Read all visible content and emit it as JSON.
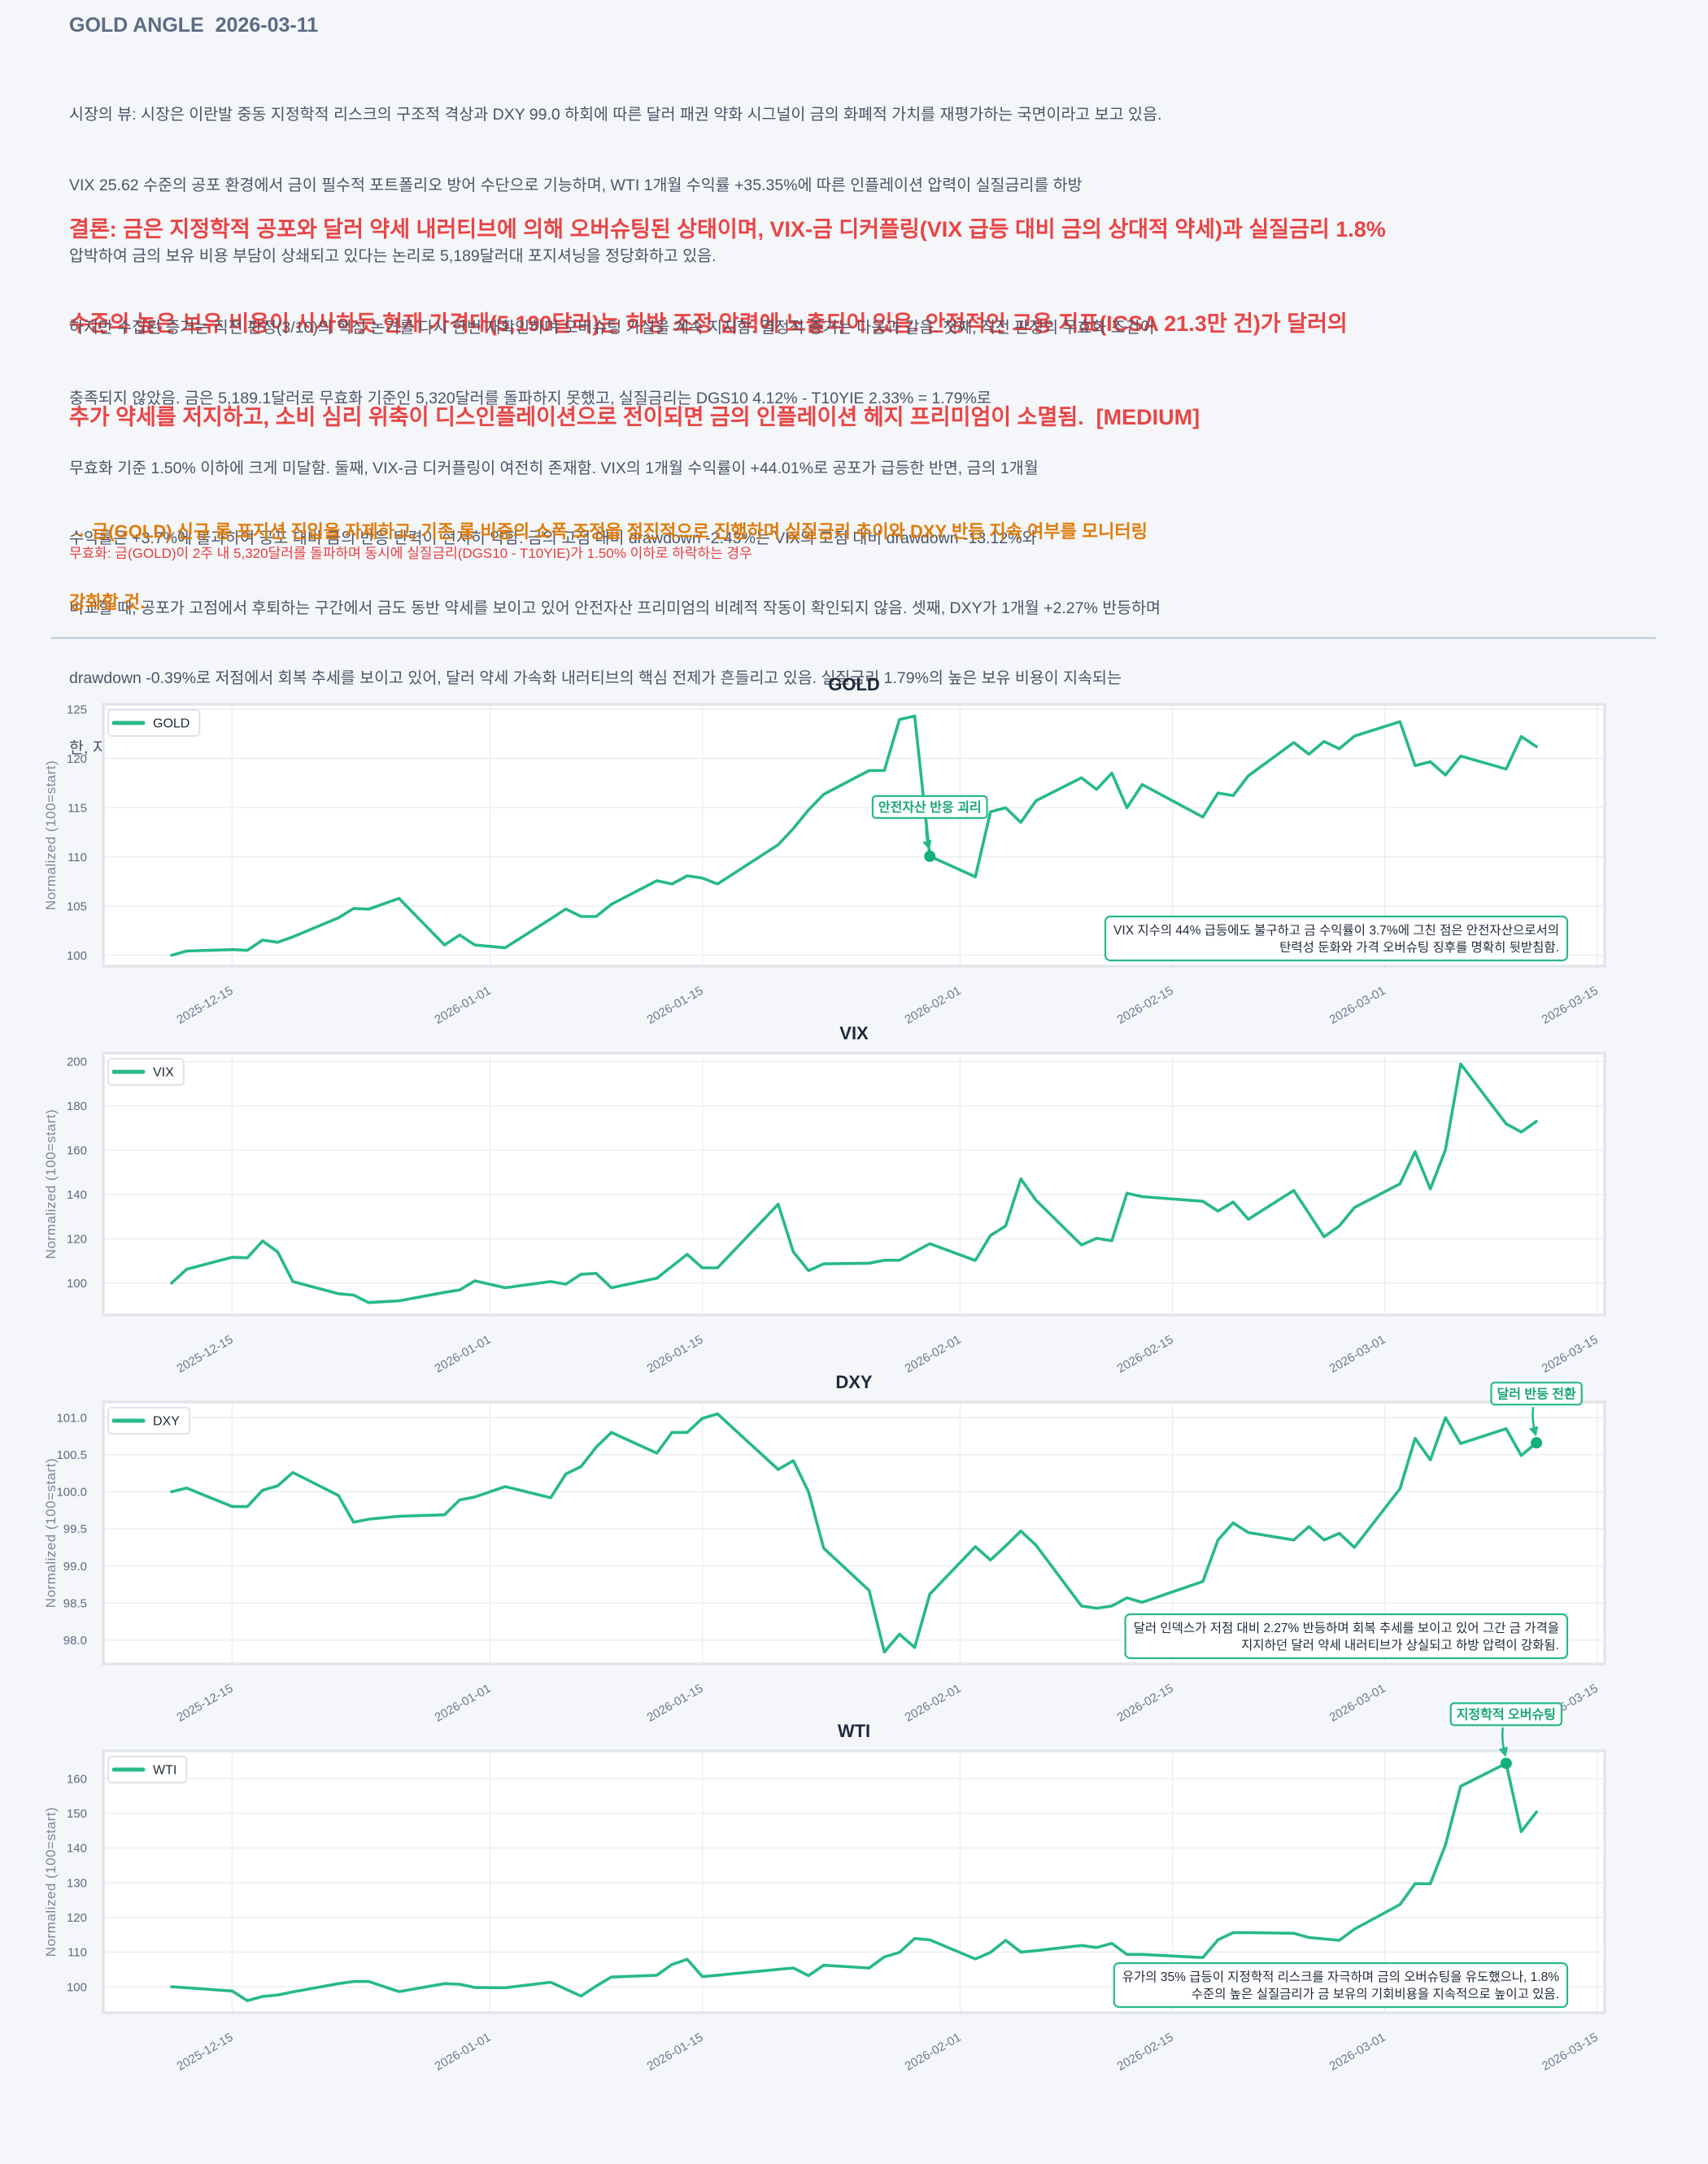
{
  "header": {
    "title": "GOLD ANGLE  2026-03-11"
  },
  "market_view": {
    "lines": [
      "시장의 뷰: 시장은 이란발 중동 지정학적 리스크의 구조적 격상과 DXY 99.0 하회에 따른 달러 패권 약화 시그널이 금의 화폐적 가치를 재평가하는 국면이라고 보고 있음.",
      "VIX 25.62 수준의 공포 환경에서 금이 필수적 포트폴리오 방어 수단으로 기능하며, WTI 1개월 수익률 +35.35%에 따른 인플레이션 압력이 실질금리를 하방",
      "압박하여 금의 보유 비용 부담이 상쇄되고 있다는 논리로 5,189달러대 포지셔닝을 정당화하고 있음."
    ]
  },
  "conclusion": {
    "lines": [
      "결론: 금은 지정학적 공포와 달러 약세 내러티브에 의해 오버슈팅된 상태이며, VIX-금 디커플링(VIX 급등 대비 금의 상대적 약세)과 실질금리 1.8%",
      "수준의 높은 보유 비용이 시사하듯 현재 가격대(5,190달러)는 하방 조정 압력에 노출되어 있음. 안정적인 고용 지표(ICSA 21.3만 건)가 달러의",
      "추가 약세를 저지하고, 소비 심리 위축이 디스인플레이션으로 전이되면 금의 인플레이션 헤지 프리미엄이 소멸됨.  [MEDIUM]"
    ]
  },
  "evidence": {
    "lines": [
      "하지만 수집된 증거는 직전 판정(3/10)의 핵심 논거를 다시 한번 재확인하며 오버슈팅 가설을 계속 지지함. 결정적 증거는 다음과 같음. 첫째, 직전 판정의 무효화 조건이",
      "충족되지 않았음. 금은 5,189.1달러로 무효화 기준인 5,320달러를 돌파하지 못했고, 실질금리는 DGS10 4.12% - T10YIE 2.33% = 1.79%로",
      "무효화 기준 1.50% 이하에 크게 미달함. 둘째, VIX-금 디커플링이 여전히 존재함. VIX의 1개월 수익률이 +44.01%로 공포가 급등한 반면, 금의 1개월",
      "수익률은 +3.7%에 불과하여 공포 대비 금의 반응 탄력이 현저히 약함. 금의 고점 대비 drawdown -2.43%는 VIX의 고점 대비 drawdown -13.12%와",
      "비교할 때, 공포가 고점에서 후퇴하는 구간에서 금도 동반 약세를 보이고 있어 안전자산 프리미엄의 비례적 작동이 확인되지 않음. 셋째, DXY가 1개월 +2.27% 반등하며",
      "drawdown -0.39%로 저점에서 회복 추세를 보이고 있어, 달러 약세 가속화 내러티브의 핵심 전제가 흔들리고 있음. 실질금리 1.79%의 높은 보유 비용이 지속되는",
      "한, 지정학적 프리미엄만으로 현 가격대를 지탱하기 어려운 구조임."
    ]
  },
  "action": {
    "lines": [
      "→ 금(GOLD) 신규 롱 포지션 진입을 자제하고, 기존 롱 비중의 소폭 조정을 점진적으로 진행하며 실질금리 추이와 DXY 반등 지속 여부를 모니터링",
      "강화할 것."
    ]
  },
  "invalidation": {
    "text": "무효화: 금(GOLD)이 2주 내 5,320달러를 돌파하며 동시에 실질금리(DGS10 - T10YIE)가 1.50% 이하로 하락하는 경우"
  },
  "theme": {
    "accent": "#27b98a",
    "marker": "#14b07a",
    "annotation_text": "#17a673"
  },
  "chart_data": [
    {
      "type": "line",
      "title": "GOLD",
      "xlabel": "",
      "ylabel": "Normalized (100=start)",
      "xlim": [
        "2025-12-06T12:00",
        "2026-03-15T12:00"
      ],
      "ylim": [
        98.9,
        125.5
      ],
      "grid": true,
      "legend": "top-left",
      "xticks": [
        "2025-12-15",
        "2026-01-01",
        "2026-01-15",
        "2026-02-01",
        "2026-02-15",
        "2026-03-01",
        "2026-03-15"
      ],
      "yticks": [
        100,
        105,
        110,
        115,
        120,
        125
      ],
      "ytick_labels": [
        "100",
        "105",
        "110",
        "115",
        "120",
        "125"
      ],
      "x": [
        "2025-12-11",
        "2025-12-12",
        "2025-12-15",
        "2025-12-16",
        "2025-12-17",
        "2025-12-18",
        "2025-12-19",
        "2025-12-22",
        "2025-12-23",
        "2025-12-24",
        "2025-12-26",
        "2025-12-29",
        "2025-12-30",
        "2025-12-31",
        "2026-01-02",
        "2026-01-05",
        "2026-01-06",
        "2026-01-07",
        "2026-01-08",
        "2026-01-09",
        "2026-01-12",
        "2026-01-13",
        "2026-01-14",
        "2026-01-15",
        "2026-01-16",
        "2026-01-20",
        "2026-01-21",
        "2026-01-22",
        "2026-01-23",
        "2026-01-26",
        "2026-01-27",
        "2026-01-28",
        "2026-01-29",
        "2026-01-30",
        "2026-02-02",
        "2026-02-03",
        "2026-02-04",
        "2026-02-05",
        "2026-02-06",
        "2026-02-09",
        "2026-02-10",
        "2026-02-11",
        "2026-02-12",
        "2026-02-13",
        "2026-02-17",
        "2026-02-18",
        "2026-02-19",
        "2026-02-20",
        "2026-02-23",
        "2026-02-24",
        "2026-02-25",
        "2026-02-26",
        "2026-02-27",
        "2026-03-02",
        "2026-03-03",
        "2026-03-04",
        "2026-03-05",
        "2026-03-06",
        "2026-03-09",
        "2026-03-10",
        "2026-03-11"
      ],
      "series": [
        {
          "name": "GOLD",
          "values": [
            100.0,
            100.44,
            100.58,
            100.5,
            101.54,
            101.32,
            101.87,
            103.8,
            104.76,
            104.68,
            105.78,
            101.05,
            102.06,
            101.05,
            100.77,
            103.7,
            104.7,
            103.94,
            103.94,
            105.18,
            107.57,
            107.24,
            108.07,
            107.85,
            107.24,
            111.23,
            112.88,
            114.76,
            116.35,
            118.77,
            118.77,
            123.95,
            124.3,
            110.06,
            107.97,
            114.57,
            114.98,
            113.5,
            115.7,
            118.03,
            116.85,
            118.5,
            114.98,
            117.35,
            114.04,
            116.49,
            116.22,
            118.23,
            121.61,
            120.43,
            121.72,
            120.98,
            122.27,
            123.73,
            119.27,
            119.66,
            118.31,
            120.24,
            118.92,
            122.22,
            121.2
          ]
        }
      ],
      "annotations": [
        {
          "text": "안전자산 반응 괴리",
          "x": "2026-01-30",
          "y": 110.06
        }
      ],
      "note": {
        "position": "bottom-right",
        "lines": [
          "VIX 지수의 44% 급등에도 불구하고 금 수익률이 3.7%에 그친 점은 안전자산으로서의",
          "탄력성 둔화와 가격 오버슈팅 징후를 명확히 뒷받침함."
        ]
      }
    },
    {
      "type": "line",
      "title": "VIX",
      "xlabel": "",
      "ylabel": "Normalized (100=start)",
      "xlim": [
        "2025-12-06T12:00",
        "2026-03-15T12:00"
      ],
      "ylim": [
        85.6,
        203.8
      ],
      "grid": true,
      "legend": "top-left",
      "xticks": [
        "2025-12-15",
        "2026-01-01",
        "2026-01-15",
        "2026-02-01",
        "2026-02-15",
        "2026-03-01",
        "2026-03-15"
      ],
      "yticks": [
        100,
        120,
        140,
        160,
        180,
        200
      ],
      "ytick_labels": [
        "100",
        "120",
        "140",
        "160",
        "180",
        "200"
      ],
      "x": [
        "2025-12-11",
        "2025-12-12",
        "2025-12-15",
        "2025-12-16",
        "2025-12-17",
        "2025-12-18",
        "2025-12-19",
        "2025-12-22",
        "2025-12-23",
        "2025-12-24",
        "2025-12-26",
        "2025-12-29",
        "2025-12-30",
        "2025-12-31",
        "2026-01-02",
        "2026-01-05",
        "2026-01-06",
        "2026-01-07",
        "2026-01-08",
        "2026-01-09",
        "2026-01-12",
        "2026-01-13",
        "2026-01-14",
        "2026-01-15",
        "2026-01-16",
        "2026-01-20",
        "2026-01-21",
        "2026-01-22",
        "2026-01-23",
        "2026-01-26",
        "2026-01-27",
        "2026-01-28",
        "2026-01-29",
        "2026-01-30",
        "2026-02-02",
        "2026-02-03",
        "2026-02-04",
        "2026-02-05",
        "2026-02-06",
        "2026-02-09",
        "2026-02-10",
        "2026-02-11",
        "2026-02-12",
        "2026-02-13",
        "2026-02-17",
        "2026-02-18",
        "2026-02-19",
        "2026-02-20",
        "2026-02-23",
        "2026-02-24",
        "2026-02-25",
        "2026-02-26",
        "2026-02-27",
        "2026-03-02",
        "2026-03-03",
        "2026-03-04",
        "2026-03-05",
        "2026-03-06",
        "2026-03-09",
        "2026-03-10",
        "2026-03-11"
      ],
      "series": [
        {
          "name": "VIX",
          "values": [
            100.0,
            106.26,
            111.66,
            111.4,
            119.0,
            114.1,
            100.7,
            95.2,
            94.6,
            91.2,
            92.0,
            95.8,
            96.9,
            101.0,
            97.9,
            100.7,
            99.5,
            104.0,
            104.4,
            97.9,
            102.2,
            107.6,
            113.0,
            106.9,
            106.9,
            135.6,
            114.1,
            105.6,
            108.7,
            109.0,
            110.3,
            110.3,
            114.1,
            117.8,
            110.2,
            121.5,
            125.8,
            147.0,
            137.4,
            117.2,
            120.2,
            119.1,
            140.6,
            139.0,
            136.9,
            132.5,
            136.6,
            128.8,
            141.8,
            131.4,
            120.9,
            125.8,
            134.1,
            144.8,
            159.3,
            142.5,
            160.2,
            198.9,
            171.9,
            168.2,
            173.0
          ]
        }
      ],
      "annotations": [],
      "note": null
    },
    {
      "type": "line",
      "title": "DXY",
      "xlabel": "",
      "ylabel": "Normalized (100=start)",
      "xlim": [
        "2025-12-06T12:00",
        "2026-03-15T12:00"
      ],
      "ylim": [
        97.68,
        101.21
      ],
      "grid": true,
      "legend": "top-left",
      "xticks": [
        "2025-12-15",
        "2026-01-01",
        "2026-01-15",
        "2026-02-01",
        "2026-02-15",
        "2026-03-01",
        "2026-03-15"
      ],
      "yticks": [
        98.0,
        98.5,
        99.0,
        99.5,
        100.0,
        100.5,
        101.0
      ],
      "ytick_labels": [
        "98.0",
        "98.5",
        "99.0",
        "99.5",
        "100.0",
        "100.5",
        "101.0"
      ],
      "x": [
        "2025-12-11",
        "2025-12-12",
        "2025-12-15",
        "2025-12-16",
        "2025-12-17",
        "2025-12-18",
        "2025-12-19",
        "2025-12-22",
        "2025-12-23",
        "2025-12-24",
        "2025-12-26",
        "2025-12-29",
        "2025-12-30",
        "2025-12-31",
        "2026-01-02",
        "2026-01-05",
        "2026-01-06",
        "2026-01-07",
        "2026-01-08",
        "2026-01-09",
        "2026-01-12",
        "2026-01-13",
        "2026-01-14",
        "2026-01-15",
        "2026-01-16",
        "2026-01-20",
        "2026-01-21",
        "2026-01-22",
        "2026-01-23",
        "2026-01-26",
        "2026-01-27",
        "2026-01-28",
        "2026-01-29",
        "2026-01-30",
        "2026-02-02",
        "2026-02-03",
        "2026-02-04",
        "2026-02-05",
        "2026-02-06",
        "2026-02-09",
        "2026-02-10",
        "2026-02-11",
        "2026-02-12",
        "2026-02-13",
        "2026-02-17",
        "2026-02-18",
        "2026-02-19",
        "2026-02-20",
        "2026-02-23",
        "2026-02-24",
        "2026-02-25",
        "2026-02-26",
        "2026-02-27",
        "2026-03-02",
        "2026-03-03",
        "2026-03-04",
        "2026-03-05",
        "2026-03-06",
        "2026-03-09",
        "2026-03-10",
        "2026-03-11"
      ],
      "series": [
        {
          "name": "DXY",
          "values": [
            100.0,
            100.05,
            99.8,
            99.8,
            100.02,
            100.08,
            100.26,
            99.95,
            99.59,
            99.63,
            99.67,
            99.69,
            99.89,
            99.93,
            100.07,
            99.92,
            100.24,
            100.34,
            100.6,
            100.8,
            100.52,
            100.8,
            100.8,
            100.99,
            101.05,
            100.3,
            100.42,
            100.0,
            99.24,
            98.67,
            97.84,
            98.08,
            97.9,
            98.62,
            99.26,
            99.08,
            99.27,
            99.47,
            99.28,
            98.46,
            98.43,
            98.46,
            98.57,
            98.51,
            98.79,
            99.35,
            99.58,
            99.45,
            99.35,
            99.53,
            99.35,
            99.44,
            99.25,
            100.04,
            100.72,
            100.43,
            101.0,
            100.65,
            100.85,
            100.49,
            100.66
          ]
        }
      ],
      "annotations": [
        {
          "text": "달러 반등 전환",
          "x": "2026-03-11",
          "y": 100.66
        }
      ],
      "note": {
        "position": "bottom-right",
        "lines": [
          "달러 인덱스가 저점 대비 2.27% 반등하며 회복 추세를 보이고 있어 그간 금 가격을",
          "지지하던 달러 약세 내러티브가 상실되고 하방 압력이 강화됨."
        ]
      }
    },
    {
      "type": "line",
      "title": "WTI",
      "xlabel": "",
      "ylabel": "Normalized (100=start)",
      "xlim": [
        "2025-12-06T12:00",
        "2026-03-15T12:00"
      ],
      "ylim": [
        92.5,
        168.0
      ],
      "grid": true,
      "legend": "top-left",
      "xticks": [
        "2025-12-15",
        "2026-01-01",
        "2026-01-15",
        "2026-02-01",
        "2026-02-15",
        "2026-03-01",
        "2026-03-15"
      ],
      "yticks": [
        100,
        110,
        120,
        130,
        140,
        150,
        160
      ],
      "ytick_labels": [
        "100",
        "110",
        "120",
        "130",
        "140",
        "150",
        "160"
      ],
      "x": [
        "2025-12-11",
        "2025-12-12",
        "2025-12-15",
        "2025-12-16",
        "2025-12-17",
        "2025-12-18",
        "2025-12-19",
        "2025-12-22",
        "2025-12-23",
        "2025-12-24",
        "2025-12-26",
        "2025-12-29",
        "2025-12-30",
        "2025-12-31",
        "2026-01-02",
        "2026-01-05",
        "2026-01-06",
        "2026-01-07",
        "2026-01-08",
        "2026-01-09",
        "2026-01-12",
        "2026-01-13",
        "2026-01-14",
        "2026-01-15",
        "2026-01-16",
        "2026-01-20",
        "2026-01-21",
        "2026-01-22",
        "2026-01-23",
        "2026-01-26",
        "2026-01-27",
        "2026-01-28",
        "2026-01-29",
        "2026-01-30",
        "2026-02-02",
        "2026-02-03",
        "2026-02-04",
        "2026-02-05",
        "2026-02-06",
        "2026-02-09",
        "2026-02-10",
        "2026-02-11",
        "2026-02-12",
        "2026-02-13",
        "2026-02-17",
        "2026-02-18",
        "2026-02-19",
        "2026-02-20",
        "2026-02-23",
        "2026-02-24",
        "2026-02-25",
        "2026-02-26",
        "2026-02-27",
        "2026-03-02",
        "2026-03-03",
        "2026-03-04",
        "2026-03-05",
        "2026-03-06",
        "2026-03-09",
        "2026-03-10",
        "2026-03-11"
      ],
      "series": [
        {
          "name": "WTI",
          "values": [
            100.0,
            99.7,
            98.75,
            96.0,
            97.2,
            97.6,
            98.5,
            100.9,
            101.5,
            101.5,
            98.6,
            100.9,
            100.7,
            99.8,
            99.7,
            101.3,
            99.3,
            97.3,
            100.2,
            102.8,
            103.3,
            106.4,
            107.9,
            102.9,
            103.3,
            105.0,
            105.4,
            103.2,
            106.2,
            105.4,
            108.6,
            109.9,
            113.9,
            113.5,
            108.0,
            109.9,
            113.4,
            110.0,
            110.4,
            111.9,
            111.3,
            112.5,
            109.3,
            109.3,
            108.4,
            113.5,
            115.6,
            115.6,
            115.4,
            114.2,
            113.8,
            113.4,
            116.6,
            123.7,
            129.7,
            129.7,
            140.9,
            157.8,
            164.4,
            144.7,
            150.4
          ]
        }
      ],
      "annotations": [
        {
          "text": "지정학적 오버슈팅",
          "x": "2026-03-09",
          "y": 164.4
        }
      ],
      "note": {
        "position": "bottom-right",
        "lines": [
          "유가의 35% 급등이 지정학적 리스크를 자극하며 금의 오버슈팅을 유도했으나, 1.8%",
          "수준의 높은 실질금리가 금 보유의 기회비용을 지속적으로 높이고 있음."
        ]
      }
    }
  ]
}
